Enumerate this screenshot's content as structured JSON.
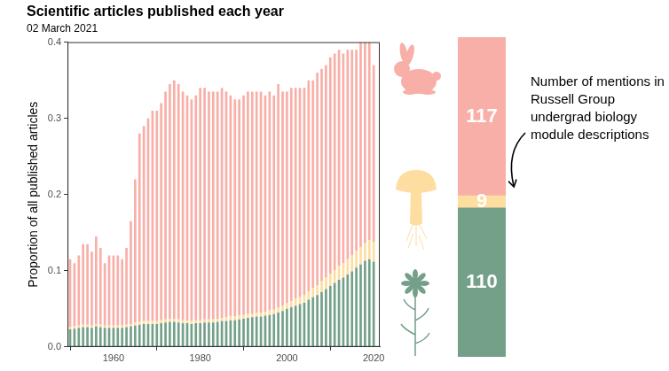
{
  "chart_data": [
    {
      "type": "bar",
      "title": "Scientific articles published each year",
      "subtitle": "02 March 2021",
      "y_label": "Proportion of all published articles",
      "x": [
        1950,
        1951,
        1952,
        1953,
        1954,
        1955,
        1956,
        1957,
        1958,
        1959,
        1960,
        1961,
        1962,
        1963,
        1964,
        1965,
        1966,
        1967,
        1968,
        1969,
        1970,
        1971,
        1972,
        1973,
        1974,
        1975,
        1976,
        1977,
        1978,
        1979,
        1980,
        1981,
        1982,
        1983,
        1984,
        1985,
        1986,
        1987,
        1988,
        1989,
        1990,
        1991,
        1992,
        1993,
        1994,
        1995,
        1996,
        1997,
        1998,
        1999,
        2000,
        2001,
        2002,
        2003,
        2004,
        2005,
        2006,
        2007,
        2008,
        2009,
        2010,
        2011,
        2012,
        2013,
        2014,
        2015,
        2016,
        2017,
        2018,
        2019,
        2020
      ],
      "series": [
        {
          "color": "#74a089",
          "values": [
            0.023,
            0.024,
            0.025,
            0.026,
            0.026,
            0.025,
            0.027,
            0.026,
            0.025,
            0.025,
            0.025,
            0.025,
            0.025,
            0.026,
            0.027,
            0.028,
            0.029,
            0.03,
            0.03,
            0.03,
            0.03,
            0.031,
            0.032,
            0.033,
            0.033,
            0.032,
            0.031,
            0.031,
            0.03,
            0.031,
            0.031,
            0.032,
            0.032,
            0.032,
            0.033,
            0.034,
            0.034,
            0.035,
            0.035,
            0.036,
            0.037,
            0.038,
            0.039,
            0.04,
            0.04,
            0.041,
            0.042,
            0.043,
            0.045,
            0.047,
            0.05,
            0.052,
            0.054,
            0.056,
            0.058,
            0.062,
            0.065,
            0.068,
            0.072,
            0.076,
            0.08,
            0.084,
            0.088,
            0.091,
            0.095,
            0.099,
            0.104,
            0.108,
            0.113,
            0.115,
            0.112
          ]
        },
        {
          "color": "#fddda0",
          "values": [
            0.003,
            0.003,
            0.003,
            0.003,
            0.003,
            0.003,
            0.003,
            0.003,
            0.003,
            0.003,
            0.003,
            0.003,
            0.003,
            0.003,
            0.003,
            0.004,
            0.004,
            0.004,
            0.004,
            0.004,
            0.004,
            0.004,
            0.004,
            0.004,
            0.004,
            0.004,
            0.004,
            0.004,
            0.004,
            0.004,
            0.004,
            0.004,
            0.004,
            0.004,
            0.004,
            0.004,
            0.005,
            0.005,
            0.005,
            0.005,
            0.005,
            0.005,
            0.005,
            0.005,
            0.005,
            0.005,
            0.006,
            0.006,
            0.007,
            0.007,
            0.008,
            0.008,
            0.009,
            0.009,
            0.01,
            0.011,
            0.012,
            0.013,
            0.014,
            0.015,
            0.016,
            0.017,
            0.018,
            0.019,
            0.02,
            0.021,
            0.022,
            0.023,
            0.024,
            0.025,
            0.026
          ]
        },
        {
          "color": "#f8afa8",
          "values": [
            0.089,
            0.083,
            0.092,
            0.106,
            0.106,
            0.097,
            0.115,
            0.101,
            0.082,
            0.092,
            0.092,
            0.092,
            0.087,
            0.101,
            0.135,
            0.188,
            0.247,
            0.256,
            0.266,
            0.276,
            0.276,
            0.285,
            0.299,
            0.308,
            0.313,
            0.309,
            0.3,
            0.295,
            0.291,
            0.295,
            0.305,
            0.304,
            0.299,
            0.299,
            0.298,
            0.302,
            0.296,
            0.29,
            0.285,
            0.284,
            0.288,
            0.292,
            0.291,
            0.29,
            0.29,
            0.284,
            0.287,
            0.281,
            0.293,
            0.281,
            0.277,
            0.28,
            0.277,
            0.275,
            0.272,
            0.277,
            0.273,
            0.279,
            0.279,
            0.279,
            0.284,
            0.284,
            0.284,
            0.275,
            0.275,
            0.27,
            0.264,
            0.269,
            0.263,
            0.26,
            0.232
          ]
        }
      ],
      "xlim": [
        1949.4,
        2021.4
      ],
      "ylim": [
        0,
        0.4
      ],
      "xticks": [
        1960,
        1980,
        2000,
        2020
      ],
      "yticks": [
        {
          "value": 0,
          "label": "0.0"
        },
        {
          "value": 0.1,
          "label": "0.1"
        },
        {
          "value": 0.2,
          "label": "0.2"
        },
        {
          "value": 0.3,
          "label": "0.3"
        },
        {
          "value": 0.4,
          "label": "0.4"
        }
      ],
      "stacked": true,
      "grid": false
    },
    {
      "type": "bar",
      "categories": [
        null
      ],
      "series": [
        {
          "color": "#74a089",
          "values": [
            110
          ]
        },
        {
          "color": "#fddda0",
          "values": [
            9
          ]
        },
        {
          "color": "#f8afa8",
          "values": [
            117
          ]
        }
      ],
      "ylim": [
        0,
        236
      ],
      "stacked": true,
      "data_labels": true,
      "tick_labels": false,
      "grid": false,
      "annotation": "Number of mentions in Russell Group undergrad biology module descriptions"
    }
  ]
}
